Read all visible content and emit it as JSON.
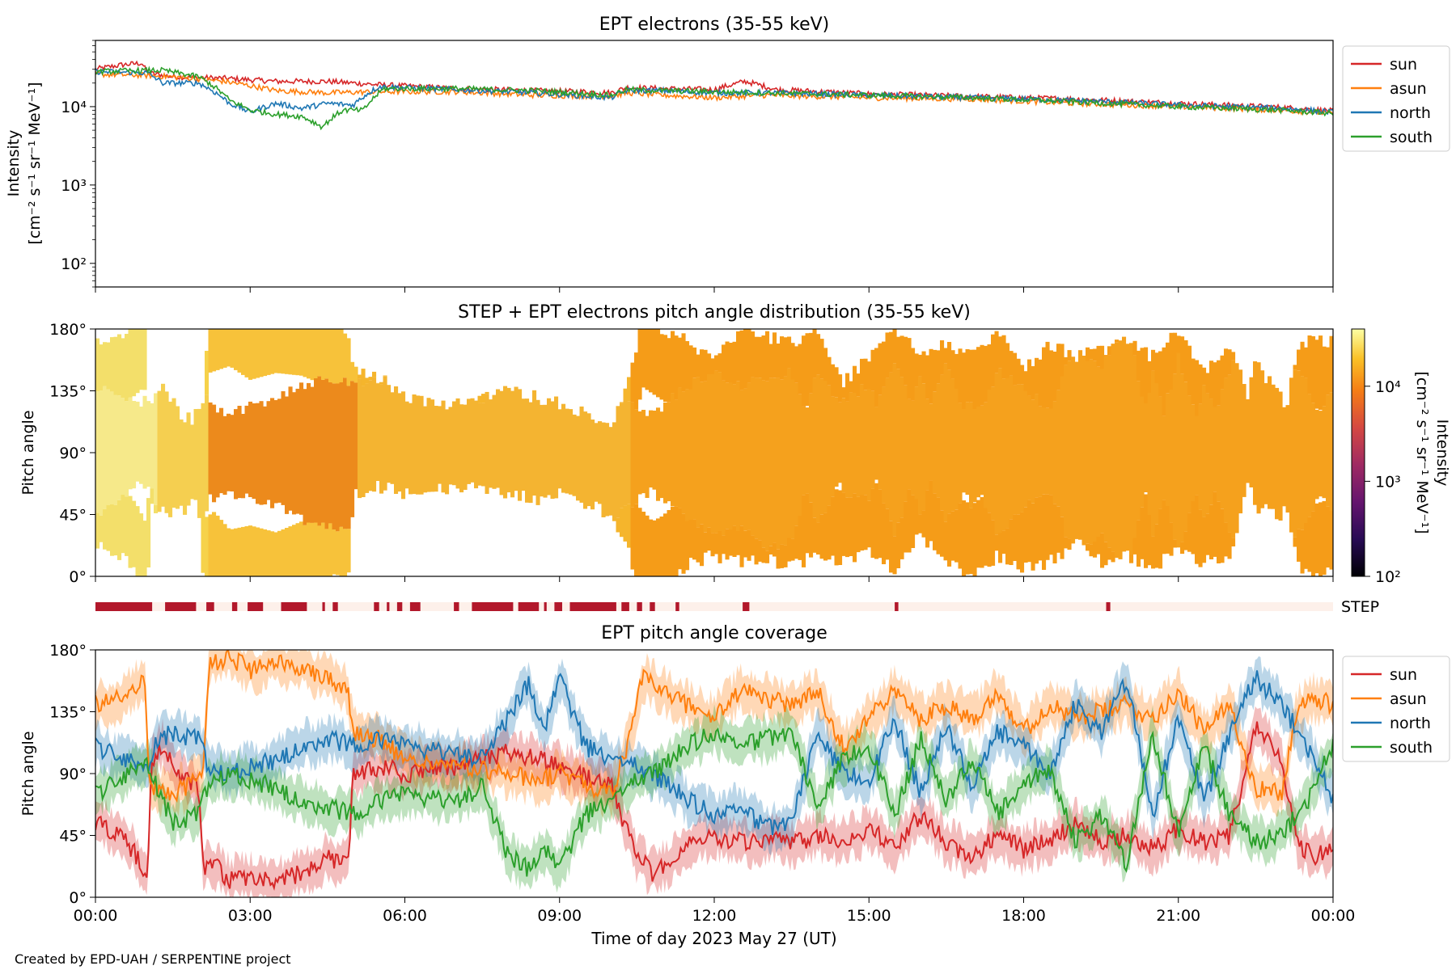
{
  "footer": "Created by EPD-UAH / SERPENTINE project",
  "colors": {
    "sun": "#d62728",
    "asun": "#ff7f0e",
    "north": "#1f77b4",
    "south": "#2ca02c",
    "step_bar": "#b2182b",
    "step_bg": "#fdf0ea"
  },
  "chart_data": [
    {
      "type": "line",
      "title": "EPT electrons (35-55 keV)",
      "ylabel": [
        "Intensity",
        "[cm⁻² s⁻¹ sr⁻¹ MeV⁻¹]"
      ],
      "yscale": "log",
      "ylim": [
        50,
        70000
      ],
      "yticks": [
        {
          "value": 100,
          "label": "10²"
        },
        {
          "value": 1000,
          "label": "10³"
        },
        {
          "value": 10000,
          "label": "10⁴"
        }
      ],
      "xlim_hours": [
        0,
        24
      ],
      "legend_position": "outside-right",
      "series": [
        {
          "name": "sun",
          "x": [
            0,
            0.5,
            0.9,
            1.0,
            1.5,
            2.5,
            3.5,
            4.5,
            5.5,
            7,
            8.5,
            9.5,
            10.0,
            10.3,
            11,
            12,
            12.6,
            13.2,
            15,
            17,
            19,
            21,
            23,
            24
          ],
          "y": [
            30000,
            34000,
            36000,
            27000,
            24000,
            23000,
            21000,
            21000,
            19000,
            17000,
            16000,
            15500,
            15000,
            17500,
            17000,
            16500,
            21000,
            16500,
            14500,
            13500,
            12500,
            11000,
            9800,
            8800
          ]
        },
        {
          "name": "asun",
          "x": [
            0,
            1,
            1.5,
            2.5,
            3.5,
            4.5,
            5.5,
            7,
            8.5,
            10,
            10.3,
            11,
            12,
            13,
            15,
            17,
            19,
            21,
            23,
            24
          ],
          "y": [
            26000,
            25000,
            24000,
            21000,
            16000,
            15000,
            15500,
            15500,
            14000,
            13500,
            15000,
            14000,
            13000,
            14000,
            13000,
            12500,
            11000,
            10000,
            9000,
            8200
          ]
        },
        {
          "name": "north",
          "x": [
            0,
            1,
            1.3,
            2.0,
            2.6,
            3.0,
            3.5,
            4.0,
            4.5,
            5.0,
            5.5,
            7,
            8.5,
            10,
            10.3,
            11,
            12,
            13,
            15,
            17,
            19,
            21,
            23,
            24
          ],
          "y": [
            28000,
            27000,
            20000,
            20000,
            11000,
            8500,
            11000,
            9500,
            11000,
            10500,
            18000,
            16500,
            15000,
            13000,
            16000,
            16000,
            15000,
            15000,
            14000,
            13000,
            12000,
            10500,
            9500,
            8500
          ]
        },
        {
          "name": "south",
          "x": [
            0,
            1,
            1.3,
            2.0,
            2.6,
            3.0,
            3.5,
            4.0,
            4.4,
            4.8,
            5.2,
            5.6,
            7,
            8.5,
            10,
            10.3,
            11,
            12,
            13,
            15,
            17,
            19,
            21,
            23,
            24
          ],
          "y": [
            28000,
            29000,
            29000,
            24000,
            12000,
            9000,
            8000,
            7500,
            5500,
            9000,
            9000,
            17000,
            17000,
            16000,
            14000,
            16500,
            16000,
            15500,
            15000,
            14000,
            13000,
            11500,
            10000,
            9000,
            8200
          ]
        }
      ]
    },
    {
      "type": "heatmap",
      "title": "STEP + EPT electrons pitch angle distribution (35-55 keV)",
      "ylabel": "Pitch angle",
      "ylim_deg": [
        0,
        180
      ],
      "yticks": [
        "0°",
        "45°",
        "90°",
        "135°",
        "180°"
      ],
      "colorbar": {
        "label": [
          "Intensity",
          "[cm⁻² s⁻¹ sr⁻¹ MeV⁻¹]"
        ],
        "scale": "log",
        "range": [
          100,
          40000
        ],
        "ticks": [
          {
            "value": 100,
            "label": "10²"
          },
          {
            "value": 1000,
            "label": "10³"
          },
          {
            "value": 10000,
            "label": "10⁴"
          }
        ],
        "colormap": "inferno"
      }
    },
    {
      "type": "table",
      "label": "STEP",
      "step_intervals_hours": [
        [
          0,
          1.1
        ],
        [
          1.35,
          1.95
        ],
        [
          2.15,
          2.3
        ],
        [
          2.65,
          2.75
        ],
        [
          2.95,
          3.25
        ],
        [
          3.6,
          4.1
        ],
        [
          4.4,
          4.45
        ],
        [
          4.6,
          4.7
        ],
        [
          5.4,
          5.5
        ],
        [
          5.65,
          5.7
        ],
        [
          5.85,
          5.95
        ],
        [
          6.1,
          6.3
        ],
        [
          6.95,
          7.05
        ],
        [
          7.3,
          8.1
        ],
        [
          8.2,
          8.6
        ],
        [
          8.7,
          8.75
        ],
        [
          8.9,
          9.05
        ],
        [
          9.2,
          10.1
        ],
        [
          10.2,
          10.35
        ],
        [
          10.5,
          10.6
        ],
        [
          10.75,
          10.85
        ],
        [
          11.25,
          11.32
        ],
        [
          12.55,
          12.68
        ],
        [
          15.5,
          15.57
        ],
        [
          19.6,
          19.68
        ]
      ]
    },
    {
      "type": "area",
      "title": "EPT pitch angle coverage",
      "ylabel": "Pitch angle",
      "ylim_deg": [
        0,
        180
      ],
      "yticks": [
        "0°",
        "45°",
        "90°",
        "135°",
        "180°"
      ],
      "xlabel": "Time of day 2023 May 27 (UT)",
      "xticks": [
        "00:00",
        "03:00",
        "06:00",
        "09:00",
        "12:00",
        "15:00",
        "18:00",
        "21:00",
        "00:00"
      ],
      "xlim_hours": [
        0,
        24
      ],
      "legend_position": "outside-right",
      "band_halfwidth_deg": 14,
      "series": [
        {
          "name": "sun",
          "x": [
            0,
            0.5,
            0.8,
            1.0,
            1.1,
            1.3,
            1.6,
            2.0,
            2.1,
            2.3,
            2.6,
            3.0,
            3.5,
            4.0,
            4.5,
            4.9,
            5.0,
            5.5,
            6.0,
            7.0,
            8.0,
            8.6,
            9.0,
            10.0,
            10.5,
            10.8,
            11.0,
            11.5,
            12.0,
            12.5,
            13.0,
            13.5,
            14.0,
            14.5,
            15.0,
            15.5,
            16.0,
            16.5,
            17.0,
            17.5,
            18.0,
            18.5,
            19.0,
            19.5,
            20.0,
            20.5,
            21.0,
            21.5,
            22.0,
            22.5,
            23.0,
            23.3,
            23.6,
            24
          ],
          "y": [
            55,
            45,
            30,
            15,
            100,
            110,
            90,
            80,
            20,
            25,
            12,
            15,
            10,
            18,
            28,
            25,
            90,
            95,
            90,
            95,
            105,
            100,
            95,
            80,
            30,
            18,
            22,
            40,
            45,
            40,
            42,
            38,
            45,
            40,
            50,
            35,
            60,
            40,
            30,
            45,
            35,
            40,
            55,
            40,
            45,
            35,
            50,
            40,
            45,
            125,
            100,
            40,
            30,
            35
          ]
        },
        {
          "name": "asun",
          "x": [
            0,
            0.5,
            0.8,
            0.95,
            1.05,
            1.4,
            1.8,
            2.1,
            2.2,
            2.6,
            3.0,
            3.5,
            4.0,
            4.5,
            4.9,
            5.0,
            5.5,
            6.0,
            7.0,
            8.0,
            8.6,
            9.0,
            10.0,
            10.4,
            10.6,
            11.0,
            11.5,
            12.0,
            12.5,
            13.0,
            13.5,
            14.0,
            14.5,
            15.0,
            15.5,
            16.0,
            16.5,
            17.0,
            17.5,
            18.0,
            18.5,
            19.0,
            19.5,
            20.0,
            20.5,
            21.0,
            21.5,
            22.0,
            22.5,
            23.0,
            23.3,
            23.6,
            24
          ],
          "y": [
            140,
            145,
            155,
            160,
            80,
            75,
            80,
            95,
            170,
            175,
            165,
            170,
            168,
            160,
            150,
            120,
            115,
            100,
            95,
            90,
            85,
            90,
            75,
            120,
            160,
            150,
            140,
            130,
            150,
            145,
            140,
            150,
            110,
            130,
            150,
            130,
            140,
            130,
            150,
            120,
            140,
            130,
            135,
            140,
            130,
            150,
            120,
            140,
            80,
            75,
            135,
            145,
            140
          ]
        },
        {
          "name": "north",
          "x": [
            0,
            0.5,
            1.0,
            1.2,
            1.5,
            2.0,
            2.2,
            2.6,
            3.0,
            3.5,
            4.0,
            4.5,
            5.0,
            5.5,
            6.0,
            7.0,
            7.5,
            8.0,
            8.4,
            8.7,
            9.0,
            9.5,
            10.0,
            10.5,
            11.0,
            11.5,
            12.0,
            12.5,
            13.0,
            13.5,
            14.0,
            14.5,
            15.0,
            15.5,
            16.0,
            16.5,
            17.0,
            17.5,
            18.0,
            18.5,
            19.0,
            19.5,
            20.0,
            20.5,
            21.0,
            21.5,
            22.0,
            22.5,
            23.0,
            23.5,
            24
          ],
          "y": [
            110,
            100,
            95,
            115,
            120,
            115,
            95,
            90,
            95,
            100,
            110,
            115,
            110,
            115,
            110,
            105,
            100,
            130,
            155,
            120,
            160,
            110,
            100,
            95,
            85,
            70,
            60,
            65,
            50,
            55,
            120,
            90,
            85,
            130,
            75,
            125,
            80,
            120,
            110,
            90,
            140,
            120,
            160,
            60,
            130,
            70,
            120,
            160,
            140,
            110,
            70
          ]
        },
        {
          "name": "south",
          "x": [
            0,
            0.5,
            1.0,
            1.2,
            1.5,
            2.0,
            2.2,
            2.6,
            3.0,
            3.5,
            4.0,
            4.5,
            5.0,
            5.5,
            6.0,
            7.0,
            7.5,
            8.0,
            8.4,
            8.7,
            9.0,
            9.5,
            10.0,
            10.5,
            11.0,
            11.5,
            12.0,
            12.5,
            13.0,
            13.5,
            14.0,
            14.5,
            15.0,
            15.5,
            16.0,
            16.5,
            17.0,
            17.5,
            18.0,
            18.5,
            19.0,
            19.5,
            20.0,
            20.5,
            21.0,
            21.5,
            22.0,
            22.5,
            23.0,
            23.5,
            24
          ],
          "y": [
            75,
            85,
            100,
            80,
            55,
            60,
            85,
            90,
            85,
            80,
            70,
            65,
            60,
            70,
            75,
            70,
            80,
            30,
            20,
            35,
            20,
            60,
            70,
            85,
            95,
            110,
            120,
            110,
            115,
            120,
            65,
            100,
            110,
            60,
            115,
            70,
            100,
            60,
            80,
            95,
            40,
            60,
            25,
            120,
            45,
            110,
            60,
            40,
            45,
            70,
            110
          ]
        }
      ]
    }
  ]
}
